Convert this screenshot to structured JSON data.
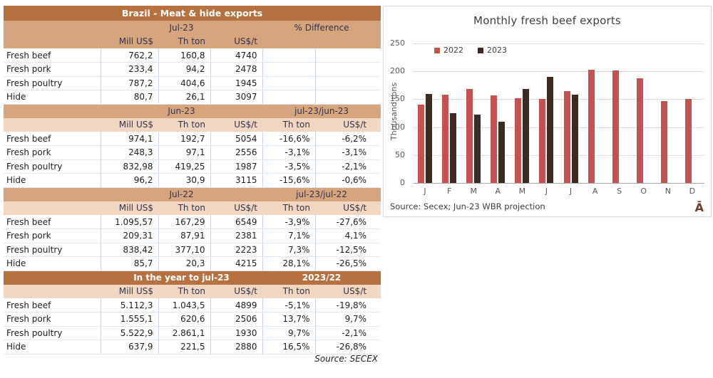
{
  "colors": {
    "header_dark": "#B5713F",
    "header_medium": "#D6A47D",
    "header_light": "#F1D7C2",
    "bar_2022": "#C5524E",
    "bar_2023": "#3B2B21",
    "corner_glyph_color": "#6F3B28"
  },
  "table": {
    "title": "Brazil - Meat & hide exports",
    "sections": [
      {
        "period": "Jul-23",
        "compare": "% Difference",
        "style": "medium",
        "colhead_style": "medium",
        "col_headers": [
          "Mill US$",
          "Th ton",
          "US$/t",
          "",
          ""
        ],
        "rows": [
          {
            "label": "Fresh beef",
            "values": [
              "762,2",
              "160,8",
              "4740",
              "",
              ""
            ]
          },
          {
            "label": "Fresh pork",
            "values": [
              "233,4",
              "94,2",
              "2478",
              "",
              ""
            ]
          },
          {
            "label": "Fresh poultry",
            "values": [
              "787,2",
              "404,6",
              "1945",
              "",
              ""
            ]
          },
          {
            "label": "Hide",
            "values": [
              "80,7",
              "26,1",
              "3097",
              "",
              ""
            ]
          }
        ]
      },
      {
        "period": "Jun-23",
        "compare": "jul-23/jun-23",
        "style": "medium",
        "colhead_style": "light",
        "col_headers": [
          "Mill US$",
          "Th ton",
          "US$/t",
          "Th ton",
          "US$/t"
        ],
        "rows": [
          {
            "label": "Fresh beef",
            "values": [
              "974,1",
              "192,7",
              "5054",
              "-16,6%",
              "-6,2%"
            ]
          },
          {
            "label": "Fresh pork",
            "values": [
              "248,3",
              "97,1",
              "2556",
              "-3,1%",
              "-3,1%"
            ]
          },
          {
            "label": "Fresh poultry",
            "values": [
              "832,98",
              "419,25",
              "1987",
              "-3,5%",
              "-2,1%"
            ]
          },
          {
            "label": "Hide",
            "values": [
              "96,2",
              "30,9",
              "3115",
              "-15,6%",
              "-0,6%"
            ]
          }
        ]
      },
      {
        "period": "Jul-22",
        "compare": "jul-23/jul-22",
        "style": "medium",
        "colhead_style": "light",
        "col_headers": [
          "Mill US$",
          "Th ton",
          "US$/t",
          "Th ton",
          "US$/t"
        ],
        "rows": [
          {
            "label": "Fresh beef",
            "values": [
              "1.095,57",
              "167,29",
              "6549",
              "-3,9%",
              "-27,6%"
            ]
          },
          {
            "label": "Fresh pork",
            "values": [
              "209,31",
              "87,91",
              "2381",
              "7,1%",
              "4,1%"
            ]
          },
          {
            "label": "Fresh poultry",
            "values": [
              "838,42",
              "377,10",
              "2223",
              "7,3%",
              "-12,5%"
            ]
          },
          {
            "label": "Hide",
            "values": [
              "85,7",
              "20,3",
              "4215",
              "28,1%",
              "-26,5%"
            ]
          }
        ]
      },
      {
        "period": "In the year to jul-23",
        "compare": "2023/22",
        "style": "dark",
        "colhead_style": "light",
        "col_headers": [
          "Mill US$",
          "Th ton",
          "US$/t",
          "Th ton",
          "US$/t"
        ],
        "rows": [
          {
            "label": "Fresh beef",
            "values": [
              "5.112,3",
              "1.043,5",
              "4899",
              "-5,1%",
              "-19,8%"
            ]
          },
          {
            "label": "Fresh pork",
            "values": [
              "1.555,1",
              "620,6",
              "2506",
              "13,7%",
              "9,7%"
            ]
          },
          {
            "label": "Fresh poultry",
            "values": [
              "5.522,9",
              "2.861,1",
              "1930",
              "9,7%",
              "-2,1%"
            ]
          },
          {
            "label": "Hide",
            "values": [
              "637,9",
              "221,5",
              "2880",
              "16,5%",
              "-26,8%"
            ]
          }
        ]
      }
    ],
    "source": "Source: SECEX"
  },
  "chart_data": {
    "type": "bar",
    "title": "Monthly fresh beef exports",
    "ylabel": "Thousand tons",
    "xlabel": "",
    "categories": [
      "J",
      "F",
      "M",
      "A",
      "M",
      "J",
      "J",
      "A",
      "S",
      "O",
      "N",
      "D"
    ],
    "series": [
      {
        "name": "2022",
        "color": "#C5524E",
        "values": [
          140,
          158,
          168,
          157,
          152,
          151,
          165,
          203,
          201,
          187,
          147,
          150
        ]
      },
      {
        "name": "2023",
        "color": "#3B2B21",
        "values": [
          160,
          125,
          123,
          110,
          168,
          190,
          158,
          null,
          null,
          null,
          null,
          null
        ]
      }
    ],
    "ylim": [
      0,
      250
    ],
    "y_ticks": [
      0,
      50,
      100,
      150,
      200,
      250
    ],
    "grid": true,
    "legend_position": "top-left",
    "source": "Source: Secex; Jun-23 WBR projection",
    "corner_glyph": "Ā"
  }
}
